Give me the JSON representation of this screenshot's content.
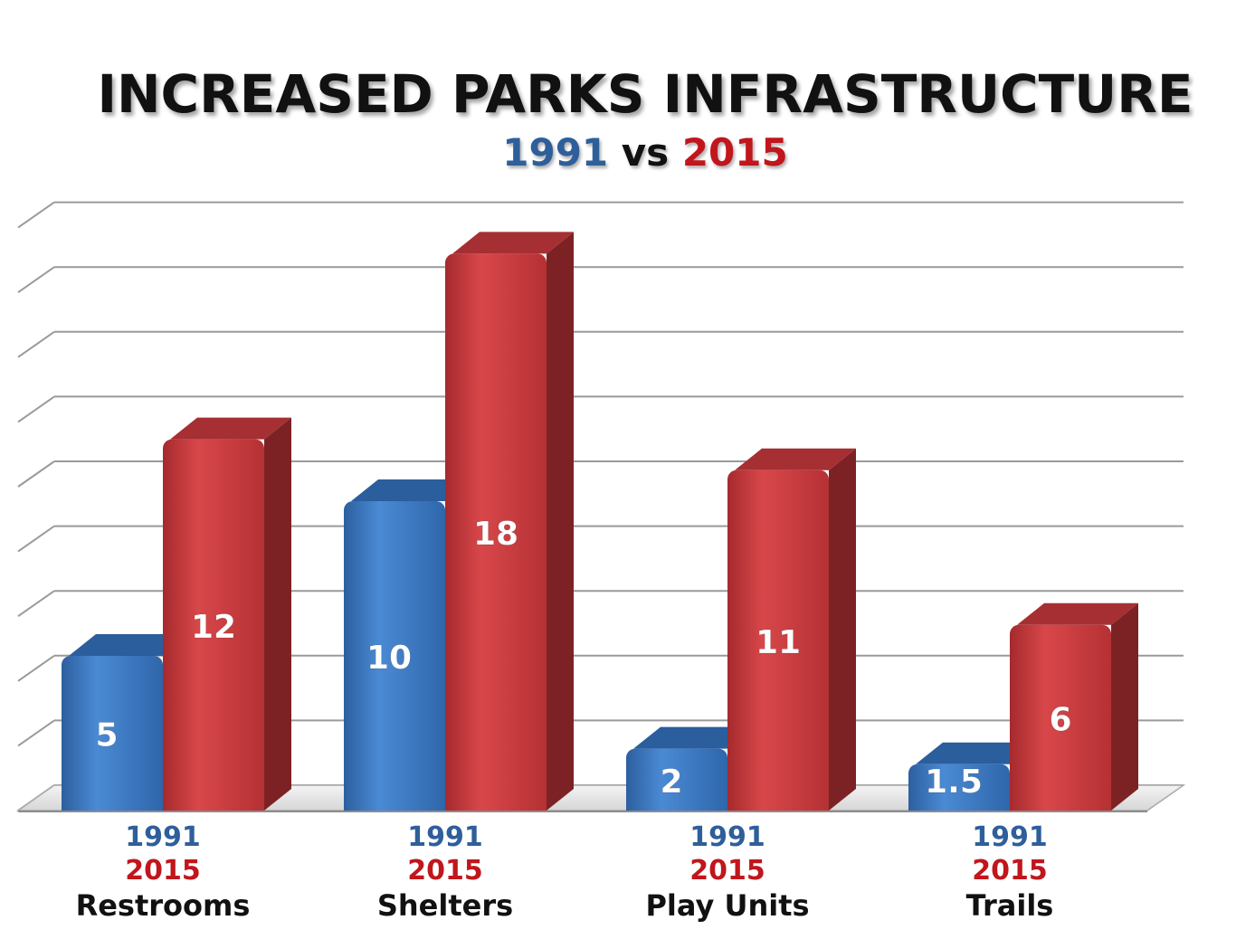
{
  "chart_data": {
    "type": "bar",
    "title": "INCREASED PARKS INFRASTRUCTURE",
    "subtitle": {
      "year_a": "1991",
      "separator": "vs",
      "year_b": "2015"
    },
    "categories": [
      "Restrooms",
      "Shelters",
      "Play Units",
      "Trails"
    ],
    "series": [
      {
        "name": "1991",
        "values": [
          5,
          10,
          2,
          1.5
        ],
        "labels": [
          "5",
          "10",
          "2",
          "1.5"
        ],
        "color": "#3b78c4"
      },
      {
        "name": "2015",
        "values": [
          12,
          18,
          11,
          6
        ],
        "labels": [
          "12",
          "18",
          "11",
          "6"
        ],
        "color": "#c9383b"
      }
    ],
    "category_year_labels": [
      "1991",
      "2015"
    ],
    "ylim": [
      0,
      19
    ],
    "grid": true,
    "colors": {
      "year_1991": "#2f5f9a",
      "year_2015": "#c0161c",
      "grid": "#9a9a9a"
    }
  }
}
